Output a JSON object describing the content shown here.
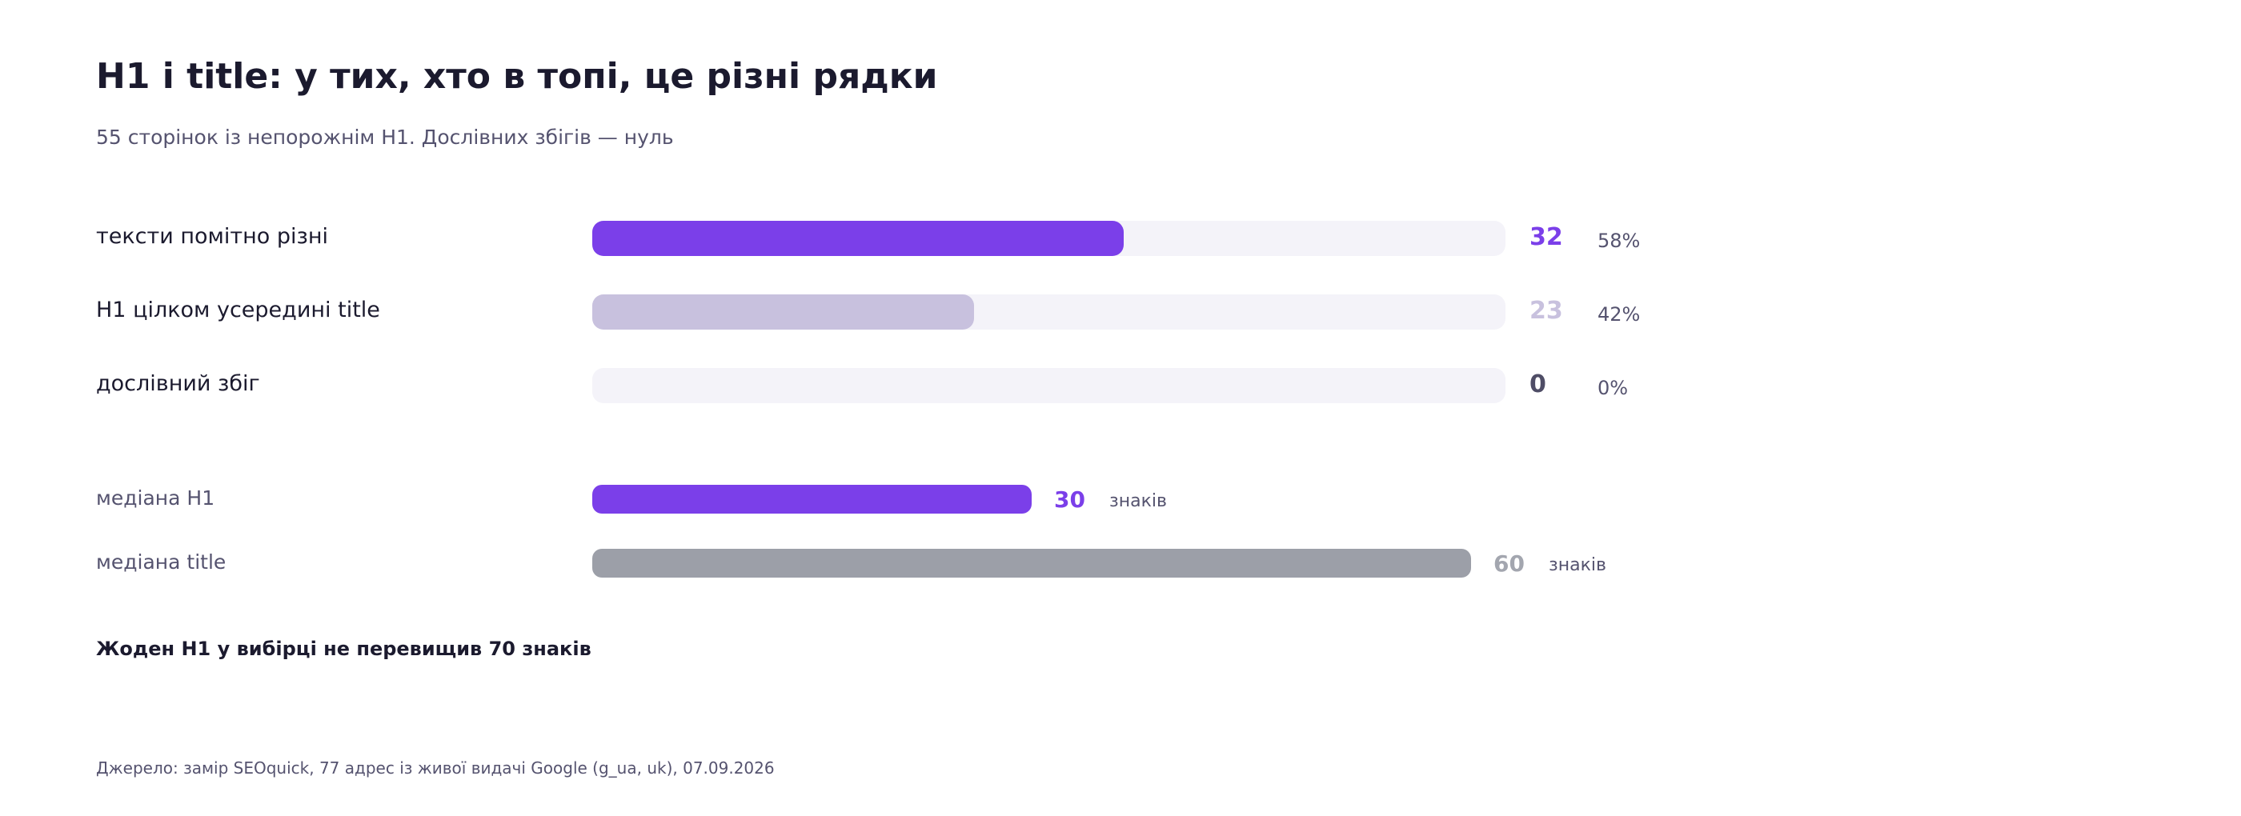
{
  "chart_data": {
    "type": "bar",
    "title": "H1 і title: у тих, хто в топі, це різні рядки",
    "subtitle": "55 сторінок із непорожнім H1. Дослівних збігів — нуль",
    "categories": [
      "тексти помітно різні",
      "H1 цілком усередині title",
      "дослівний збіг"
    ],
    "values": [
      32,
      23,
      0
    ],
    "percent_labels": [
      "58%",
      "42%",
      "0%"
    ],
    "total": 55,
    "median_chart": {
      "type": "bar",
      "categories": [
        "медіана H1",
        "медіана title"
      ],
      "values": [
        30,
        60
      ],
      "unit": "знаків"
    },
    "note": "Жоден H1 у вибірці не перевищив 70 знаків",
    "source": "Джерело: замір SEOquick, 77 адрес із живої видачі Google (g_ua, uk), 07.09.2026",
    "colors": {
      "accent": "#7b3fe9",
      "secondary": "#c8c1de",
      "zero": "#4f4d66",
      "track": "#f4f3f9",
      "title_bar": "#9c9fa8",
      "title_value": "#a3a6af"
    }
  }
}
